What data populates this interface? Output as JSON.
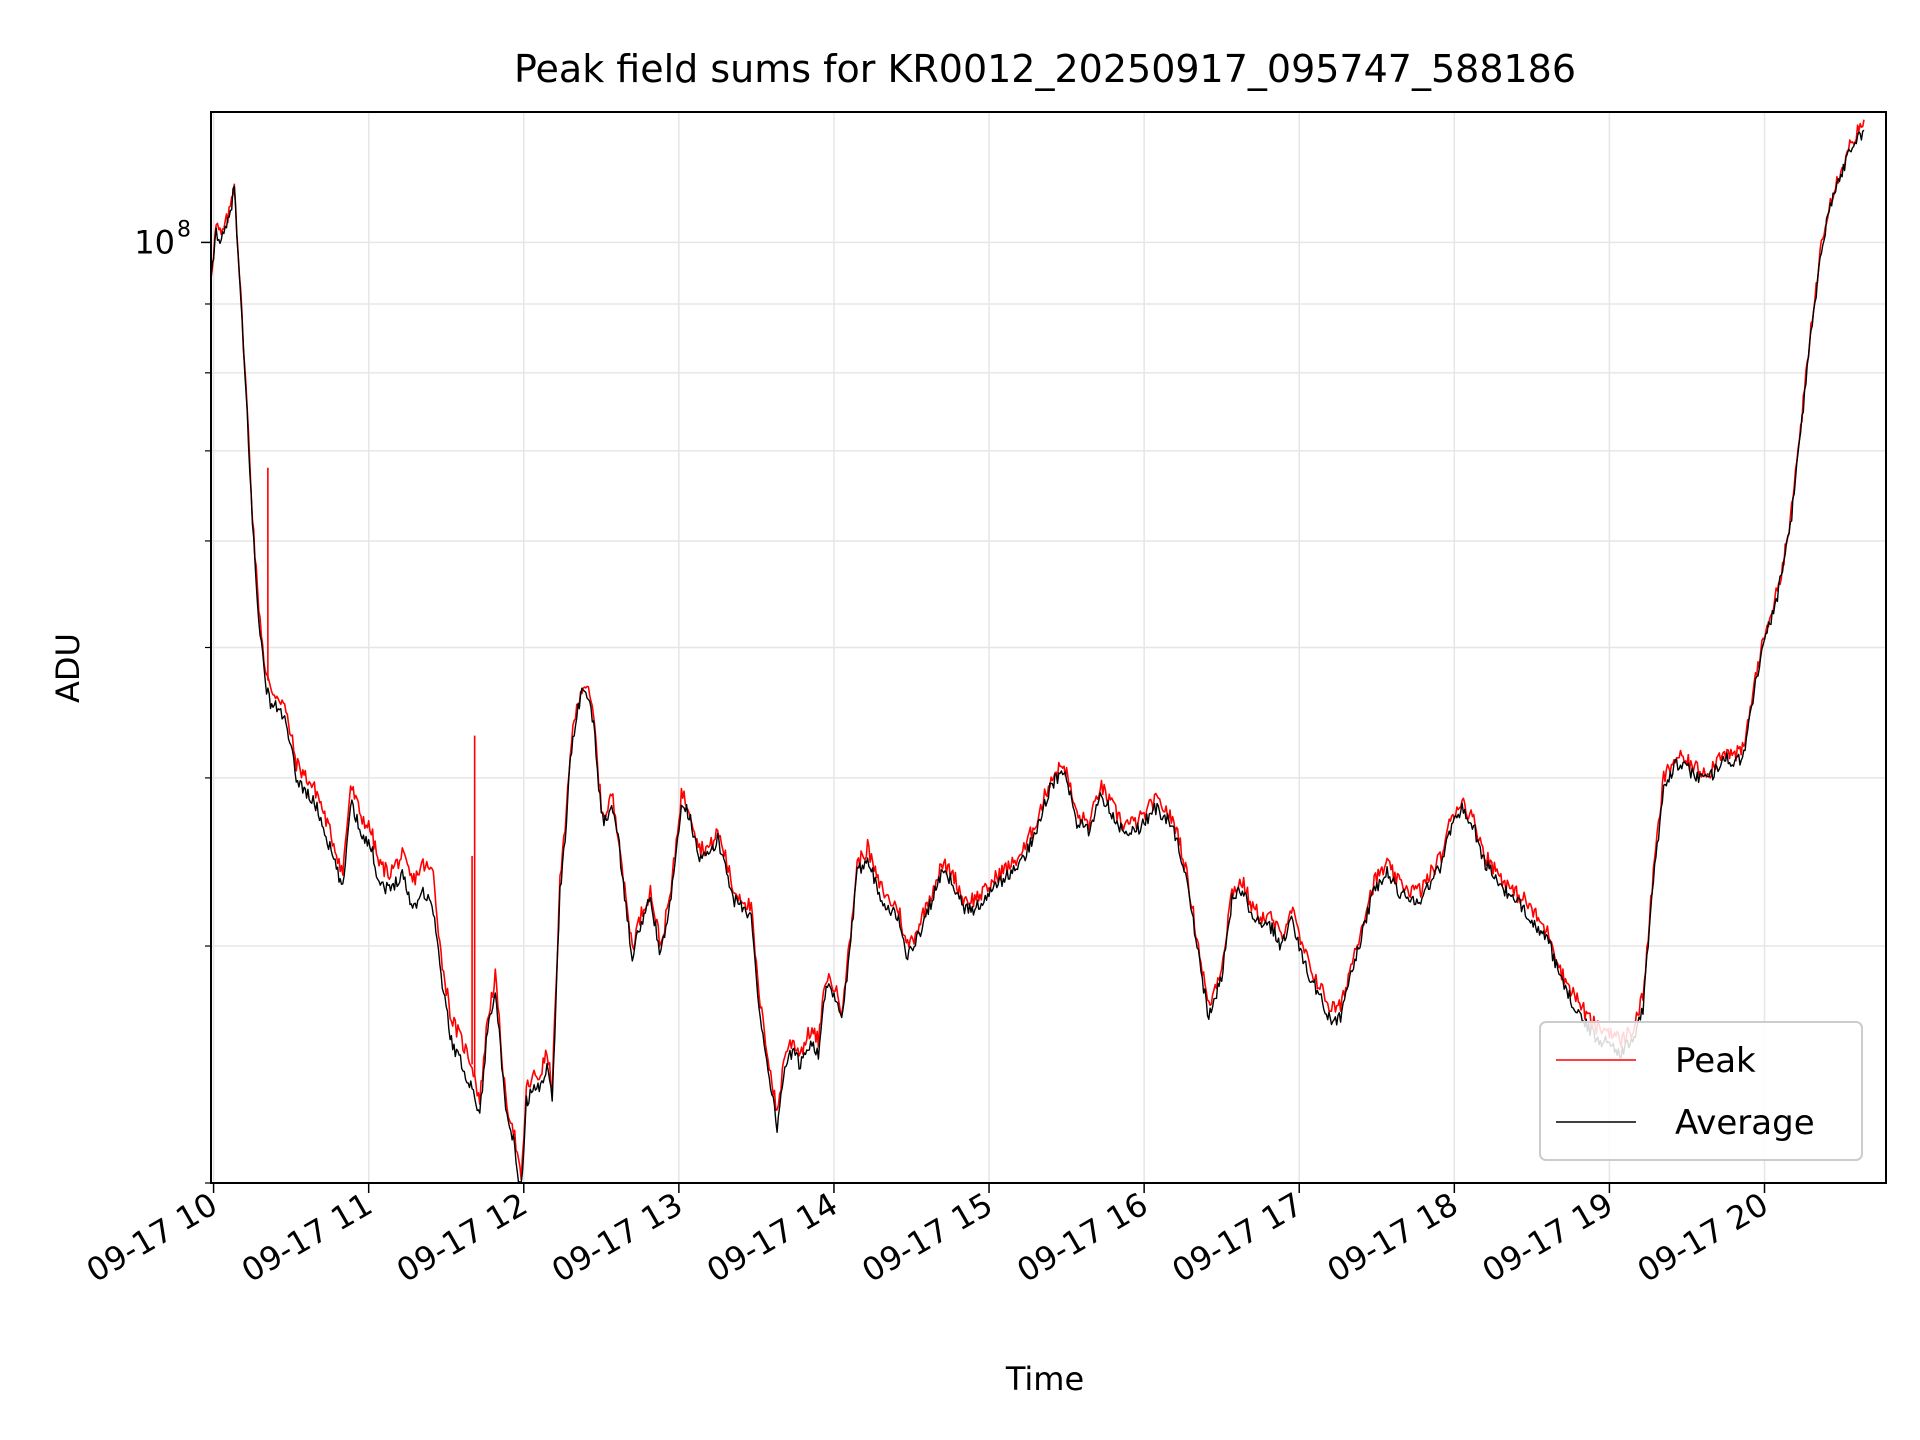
{
  "chart_data": {
    "type": "line",
    "title": "Peak field sums for KR0012_20250917_095747_588186",
    "xlabel": "Time",
    "ylabel": "ADU",
    "yscale": "log",
    "ylim": [
      20000000,
      125000000
    ],
    "xlim": [
      "2025-09-17 09:59",
      "2025-09-17 20:47"
    ],
    "grid": true,
    "legend_position": "lower right",
    "x_tick_labels": [
      "09-17 10",
      "09-17 11",
      "09-17 12",
      "09-17 13",
      "09-17 14",
      "09-17 15",
      "09-17 16",
      "09-17 17",
      "09-17 18",
      "09-17 19",
      "09-17 20"
    ],
    "y_tick_labels": [
      {
        "value": 100000000,
        "base": "10",
        "exp": "8"
      }
    ],
    "series": [
      {
        "name": "Peak",
        "color": "#ff0000"
      },
      {
        "name": "Average",
        "color": "#000000"
      }
    ],
    "x": [
      "09:59",
      "10:01",
      "10:03",
      "10:06",
      "10:08",
      "10:10",
      "10:13",
      "10:15",
      "10:17",
      "10:20",
      "10:22",
      "10:25",
      "10:27",
      "10:30",
      "10:32",
      "10:36",
      "10:40",
      "10:46",
      "10:50",
      "10:53",
      "10:57",
      "11:01",
      "11:04",
      "11:08",
      "11:13",
      "11:17",
      "11:21",
      "11:25",
      "11:28",
      "11:32",
      "11:36",
      "11:40",
      "11:43",
      "11:46",
      "11:49",
      "11:53",
      "11:56",
      "11:59",
      "12:01",
      "12:04",
      "12:06",
      "12:09",
      "12:11",
      "12:14",
      "12:16",
      "12:18",
      "12:20",
      "12:22",
      "12:24",
      "12:27",
      "12:30",
      "12:32",
      "12:34",
      "12:37",
      "12:39",
      "12:42",
      "12:45",
      "12:49",
      "12:53",
      "12:57",
      "13:01",
      "13:04",
      "13:08",
      "13:12",
      "13:15",
      "13:18",
      "13:21",
      "13:25",
      "13:28",
      "13:31",
      "13:35",
      "13:38",
      "13:41",
      "13:44",
      "13:47",
      "13:51",
      "13:54",
      "13:57",
      "14:00",
      "14:03",
      "14:06",
      "14:09",
      "14:13",
      "14:17",
      "14:21",
      "14:25",
      "14:28",
      "14:31",
      "14:34",
      "14:38",
      "14:42",
      "14:46",
      "14:50",
      "14:54",
      "14:59",
      "15:04",
      "15:09",
      "15:14",
      "15:19",
      "15:24",
      "15:29",
      "15:34",
      "15:39",
      "15:43",
      "15:48",
      "15:52",
      "15:56",
      "16:00",
      "16:04",
      "16:08",
      "16:13",
      "16:17",
      "16:21",
      "16:25",
      "16:30",
      "16:34",
      "16:38",
      "16:42",
      "16:46",
      "16:49",
      "16:53",
      "16:57",
      "17:01",
      "17:04",
      "17:08",
      "17:12",
      "17:16",
      "17:20",
      "17:25",
      "17:29",
      "17:34",
      "17:38",
      "17:43",
      "17:47",
      "17:51",
      "17:55",
      "17:59",
      "18:03",
      "18:08",
      "18:12",
      "18:17",
      "18:22",
      "18:27",
      "18:32",
      "18:37",
      "18:42",
      "18:47",
      "18:52",
      "18:56",
      "19:00",
      "19:04",
      "19:09",
      "19:13",
      "19:17",
      "19:21",
      "19:26",
      "19:31",
      "19:35",
      "19:39",
      "19:44",
      "19:48",
      "19:52",
      "19:56",
      "20:01",
      "20:05",
      "20:10",
      "20:14",
      "20:18",
      "20:22",
      "20:25",
      "20:28",
      "20:30",
      "20:33",
      "20:36",
      "20:39",
      "20:42",
      "20:45",
      "20:47"
    ],
    "peak": [
      94500000,
      103000000,
      101000000,
      105000000,
      111000000,
      95000000,
      75000000,
      63000000,
      55000000,
      48000000,
      46500000,
      46000000,
      45500000,
      43000000,
      41000000,
      40000000,
      39000000,
      36000000,
      34000000,
      39500000,
      37500000,
      36500000,
      34500000,
      34000000,
      35000000,
      33500000,
      34500000,
      34000000,
      29500000,
      26500000,
      25500000,
      24500000,
      23000000,
      26500000,
      28500000,
      23000000,
      22000000,
      20000000,
      23500000,
      24000000,
      24000000,
      25000000,
      23500000,
      33500000,
      36500000,
      42000000,
      44500000,
      46500000,
      47000000,
      44500000,
      38000000,
      37500000,
      39000000,
      36000000,
      33000000,
      30000000,
      31500000,
      33000000,
      30000000,
      33000000,
      39000000,
      38000000,
      35500000,
      35500000,
      36500000,
      35000000,
      33000000,
      32500000,
      32000000,
      27500000,
      24500000,
      22500000,
      25000000,
      25500000,
      25000000,
      26000000,
      25500000,
      28500000,
      28000000,
      27000000,
      30000000,
      34500000,
      35500000,
      33500000,
      32500000,
      32000000,
      30000000,
      30500000,
      31500000,
      33000000,
      34500000,
      34000000,
      32500000,
      32500000,
      33000000,
      34000000,
      34500000,
      35500000,
      37500000,
      40000000,
      41000000,
      37500000,
      37000000,
      39500000,
      38000000,
      37000000,
      37000000,
      37500000,
      38500000,
      38000000,
      36500000,
      33500000,
      30000000,
      27000000,
      29000000,
      33000000,
      33500000,
      32000000,
      31500000,
      31500000,
      30500000,
      32000000,
      30000000,
      29000000,
      28000000,
      27000000,
      27000000,
      29000000,
      31500000,
      33500000,
      34500000,
      33500000,
      33000000,
      33000000,
      34000000,
      35000000,
      37500000,
      38500000,
      37000000,
      35000000,
      34000000,
      33000000,
      32500000,
      31500000,
      30500000,
      28500000,
      27500000,
      26500000,
      26000000,
      26000000,
      25500000,
      26000000,
      27500000,
      34000000,
      40000000,
      41500000,
      41000000,
      40500000,
      40500000,
      42000000,
      41500000,
      42000000,
      47000000,
      52000000,
      55000000,
      62000000,
      73000000,
      86000000,
      100000000,
      107000000,
      111000000,
      114000000,
      118000000,
      121000000,
      122000000
    ],
    "average": [
      93500000,
      102000000,
      100000000,
      104000000,
      110000000,
      94000000,
      74500000,
      62000000,
      54000000,
      47000000,
      45500000,
      45000000,
      44500000,
      42000000,
      40000000,
      39000000,
      38000000,
      35000000,
      33000000,
      38500000,
      36500000,
      35500000,
      33500000,
      33000000,
      34000000,
      32000000,
      33000000,
      32000000,
      28500000,
      25500000,
      24500000,
      23500000,
      22500000,
      26000000,
      28000000,
      22500000,
      21500000,
      19500000,
      23000000,
      23500000,
      23500000,
      24500000,
      23000000,
      33000000,
      36000000,
      41500000,
      44000000,
      46000000,
      46500000,
      44000000,
      37500000,
      37000000,
      38500000,
      35500000,
      32500000,
      29500000,
      31000000,
      32500000,
      29500000,
      32500000,
      38500000,
      37500000,
      35000000,
      35000000,
      36000000,
      34500000,
      32500000,
      32000000,
      31500000,
      27000000,
      24000000,
      22000000,
      24500000,
      25000000,
      24500000,
      25500000,
      25000000,
      28000000,
      27500000,
      26500000,
      29500000,
      34000000,
      35000000,
      33000000,
      32000000,
      31500000,
      29500000,
      30000000,
      31000000,
      32500000,
      34000000,
      33500000,
      32000000,
      32000000,
      32500000,
      33500000,
      34000000,
      35000000,
      37000000,
      39500000,
      40500000,
      37000000,
      36500000,
      39000000,
      37500000,
      36500000,
      36500000,
      37000000,
      38000000,
      37500000,
      36000000,
      33000000,
      29500000,
      26500000,
      28500000,
      32500000,
      33000000,
      31500000,
      31000000,
      31000000,
      30000000,
      31500000,
      29500000,
      28500000,
      27500000,
      26500000,
      26500000,
      28500000,
      31000000,
      33000000,
      34000000,
      33000000,
      32500000,
      32500000,
      33500000,
      34500000,
      37000000,
      38000000,
      36500000,
      34500000,
      33500000,
      32500000,
      32000000,
      31000000,
      30000000,
      28000000,
      27000000,
      26000000,
      25500000,
      25500000,
      25000000,
      25500000,
      27000000,
      33500000,
      39500000,
      41000000,
      40500000,
      40000000,
      40000000,
      41500000,
      41000000,
      41500000,
      46500000,
      51500000,
      54500000,
      61500000,
      72500000,
      85500000,
      99000000,
      106000000,
      110000000,
      113000000,
      117000000,
      120000000,
      121000000
    ],
    "peak_spikes": [
      {
        "x": "10:21",
        "y": 68000000
      },
      {
        "x": "11:41",
        "y": 43000000
      },
      {
        "x": "11:40",
        "y": 35000000
      }
    ]
  }
}
